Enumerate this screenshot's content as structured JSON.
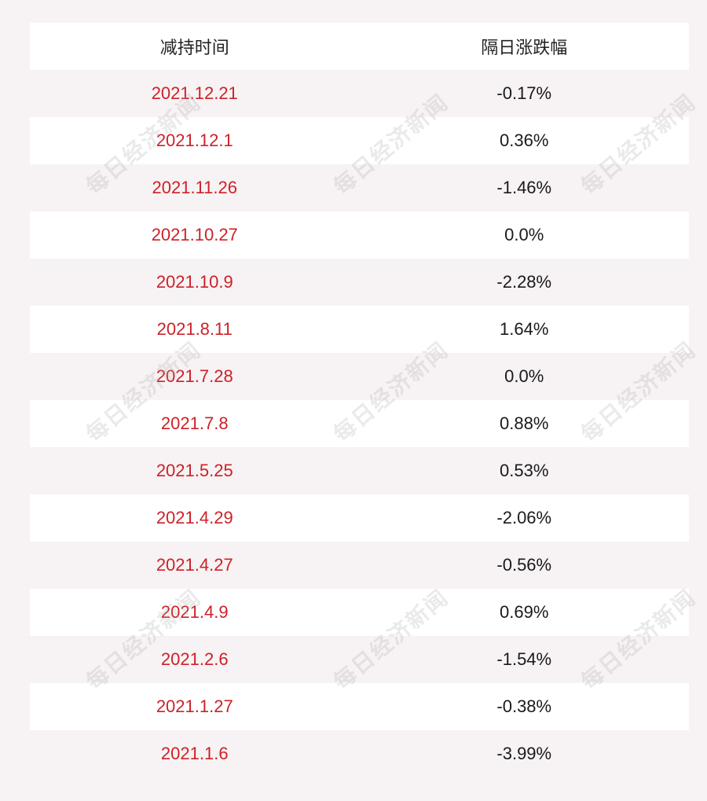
{
  "table": {
    "headers": [
      "减持时间",
      "隔日涨跌幅"
    ],
    "rows": [
      {
        "date": "2021.12.21",
        "change": "-0.17%"
      },
      {
        "date": "2021.12.1",
        "change": "0.36%"
      },
      {
        "date": "2021.11.26",
        "change": "-1.46%"
      },
      {
        "date": "2021.10.27",
        "change": "0.0%"
      },
      {
        "date": "2021.10.9",
        "change": "-2.28%"
      },
      {
        "date": "2021.8.11",
        "change": "1.64%"
      },
      {
        "date": "2021.7.28",
        "change": "0.0%"
      },
      {
        "date": "2021.7.8",
        "change": "0.88%"
      },
      {
        "date": "2021.5.25",
        "change": "0.53%"
      },
      {
        "date": "2021.4.29",
        "change": "-2.06%"
      },
      {
        "date": "2021.4.27",
        "change": "-0.56%"
      },
      {
        "date": "2021.4.9",
        "change": "0.69%"
      },
      {
        "date": "2021.2.6",
        "change": "-1.54%"
      },
      {
        "date": "2021.1.27",
        "change": "-0.38%"
      },
      {
        "date": "2021.1.6",
        "change": "-3.99%"
      }
    ]
  },
  "watermark": {
    "text": "每日经济新闻"
  },
  "colors": {
    "date_text": "#cc2229",
    "value_text": "#1a1a1a",
    "row_alt": "#f7f2f3",
    "row_main": "#ffffff"
  }
}
